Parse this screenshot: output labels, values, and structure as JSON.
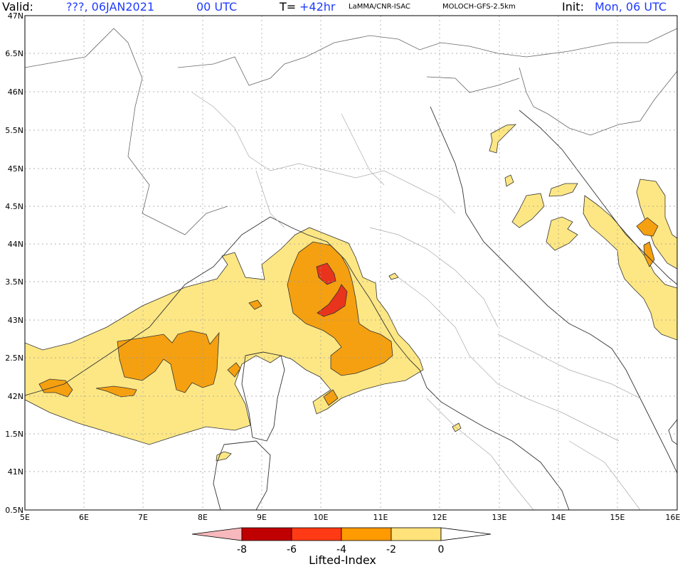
{
  "header": {
    "valid_label": "Valid:",
    "valid_value": "???, 06JAN2021",
    "utc_value": "00 UTC",
    "t_label": "T=",
    "t_value": "+42hr",
    "source": "LaMMA/CNR-ISAC",
    "model": "MOLOCH-GFS-2.5km",
    "init_label": "Init:",
    "init_value": "Mon, 06 UTC"
  },
  "axes": {
    "lat_labels": [
      "47N",
      "6.5N",
      "46N",
      "5.5N",
      "45N",
      "4.5N",
      "44N",
      "3.5N",
      "43N",
      "2.5N",
      "42N",
      "1.5N",
      "41N",
      "0.5N"
    ],
    "lon_labels": [
      "5E",
      "6E",
      "7E",
      "8E",
      "9E",
      "10E",
      "11E",
      "12E",
      "13E",
      "14E",
      "15E",
      "16E"
    ]
  },
  "colorbar": {
    "title": "Lifted-Index",
    "ticks": [
      "-8",
      "-6",
      "-4",
      "-2",
      "0"
    ],
    "colors": [
      "#f7b9bd",
      "#c00000",
      "#ff3a14",
      "#ff9a00",
      "#ffe27a"
    ]
  },
  "colors": {
    "fill_light": "#fde784",
    "fill_orange": "#f5a010",
    "fill_red": "#e8341c",
    "coast": "#333333",
    "border": "#aaaaaa",
    "grid": "#999999",
    "header_value": "#1f3cff"
  }
}
